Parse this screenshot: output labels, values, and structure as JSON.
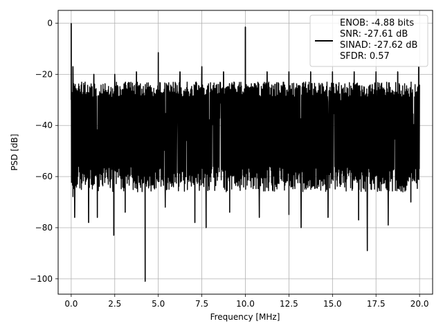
{
  "chart_data": {
    "type": "line",
    "xlabel": "Frequency [MHz]",
    "ylabel": "PSD [dB]",
    "xlim": [
      -0.75,
      20.75
    ],
    "ylim": [
      -106,
      5
    ],
    "xticks": [
      0.0,
      2.5,
      5.0,
      7.5,
      10.0,
      12.5,
      15.0,
      17.5,
      20.0
    ],
    "xtick_labels": [
      "0.0",
      "2.5",
      "5.0",
      "7.5",
      "10.0",
      "12.5",
      "15.0",
      "17.5",
      "20.0"
    ],
    "yticks": [
      0,
      -20,
      -40,
      -60,
      -80,
      -100
    ],
    "ytick_labels": [
      "0",
      "−20",
      "−40",
      "−60",
      "−80",
      "−100"
    ],
    "grid": true,
    "legend_position": "upper-right",
    "legend_lines": [
      "ENOB: -4.88 bits",
      "SNR: -27.61 dB",
      "SINAD: -27.62 dB",
      "SFDR: 0.57"
    ],
    "series": [
      {
        "color": "#000000",
        "noise_floor": {
          "x_range": [
            0.0,
            20.0
          ],
          "upper_envelope": -22,
          "lower_envelope": -60,
          "center": -40
        },
        "spikes": [
          {
            "x": 0.0,
            "y": 0
          },
          {
            "x": 0.1,
            "y": -17
          },
          {
            "x": 1.3,
            "y": -20
          },
          {
            "x": 2.5,
            "y": -20
          },
          {
            "x": 3.75,
            "y": -19
          },
          {
            "x": 5.0,
            "y": -11.5
          },
          {
            "x": 6.25,
            "y": -19
          },
          {
            "x": 7.5,
            "y": -17
          },
          {
            "x": 8.75,
            "y": -19
          },
          {
            "x": 10.0,
            "y": -1.5
          },
          {
            "x": 11.25,
            "y": -19
          },
          {
            "x": 12.5,
            "y": -19
          },
          {
            "x": 13.75,
            "y": -19
          },
          {
            "x": 15.0,
            "y": -19
          },
          {
            "x": 16.25,
            "y": -19
          },
          {
            "x": 17.5,
            "y": -19
          },
          {
            "x": 18.75,
            "y": -19
          },
          {
            "x": 19.95,
            "y": -17
          }
        ],
        "dips": [
          {
            "x": 0.1,
            "y": -68
          },
          {
            "x": 0.2,
            "y": -76
          },
          {
            "x": 1.0,
            "y": -78
          },
          {
            "x": 1.5,
            "y": -76
          },
          {
            "x": 2.45,
            "y": -83
          },
          {
            "x": 3.1,
            "y": -74
          },
          {
            "x": 4.25,
            "y": -101
          },
          {
            "x": 5.4,
            "y": -72
          },
          {
            "x": 7.1,
            "y": -78
          },
          {
            "x": 7.75,
            "y": -80
          },
          {
            "x": 9.1,
            "y": -74
          },
          {
            "x": 10.8,
            "y": -76
          },
          {
            "x": 12.5,
            "y": -75
          },
          {
            "x": 13.2,
            "y": -80
          },
          {
            "x": 14.75,
            "y": -76
          },
          {
            "x": 16.5,
            "y": -77
          },
          {
            "x": 17.0,
            "y": -89
          },
          {
            "x": 18.2,
            "y": -79
          },
          {
            "x": 19.5,
            "y": -70
          }
        ]
      }
    ]
  }
}
